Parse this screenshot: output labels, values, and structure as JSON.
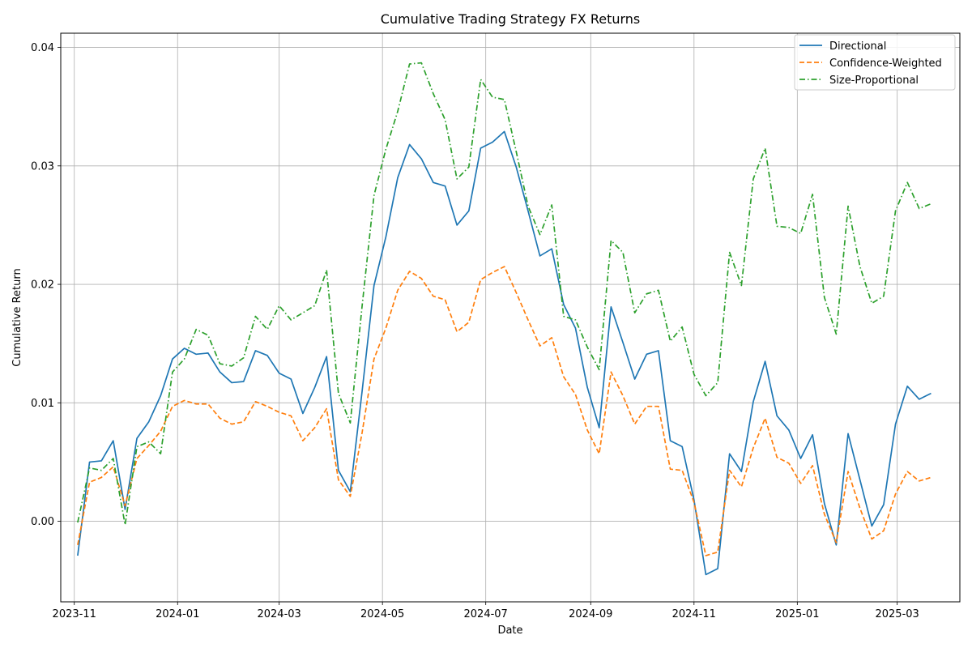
{
  "chart_data": {
    "type": "line",
    "title": "Cumulative Trading Strategy FX Returns",
    "xlabel": "Date",
    "ylabel": "Cumulative Return",
    "x_tick_labels": [
      "2023-11",
      "2024-01",
      "2024-03",
      "2024-05",
      "2024-07",
      "2024-09",
      "2024-11",
      "2025-01",
      "2025-03"
    ],
    "y_tick_labels": [
      "0.00",
      "0.01",
      "0.02",
      "0.03",
      "0.04"
    ],
    "ylim": [
      -0.0068,
      0.0412
    ],
    "xlim": [
      "2023-10-24",
      "2025-04-07"
    ],
    "grid": true,
    "legend_position": "top-right",
    "x": [
      "2023-11-03",
      "2023-11-10",
      "2023-11-17",
      "2023-11-24",
      "2023-12-01",
      "2023-12-08",
      "2023-12-15",
      "2023-12-22",
      "2023-12-29",
      "2024-01-05",
      "2024-01-12",
      "2024-01-19",
      "2024-01-26",
      "2024-02-02",
      "2024-02-09",
      "2024-02-16",
      "2024-02-23",
      "2024-03-01",
      "2024-03-08",
      "2024-03-15",
      "2024-03-22",
      "2024-03-29",
      "2024-04-05",
      "2024-04-12",
      "2024-04-19",
      "2024-04-26",
      "2024-05-03",
      "2024-05-10",
      "2024-05-17",
      "2024-05-24",
      "2024-05-31",
      "2024-06-07",
      "2024-06-14",
      "2024-06-21",
      "2024-06-28",
      "2024-07-05",
      "2024-07-12",
      "2024-07-19",
      "2024-07-26",
      "2024-08-02",
      "2024-08-09",
      "2024-08-16",
      "2024-08-23",
      "2024-08-30",
      "2024-09-06",
      "2024-09-13",
      "2024-09-20",
      "2024-09-27",
      "2024-10-04",
      "2024-10-11",
      "2024-10-18",
      "2024-10-25",
      "2024-11-01",
      "2024-11-08",
      "2024-11-15",
      "2024-11-22",
      "2024-11-29",
      "2024-12-06",
      "2024-12-13",
      "2024-12-20",
      "2024-12-27",
      "2025-01-03",
      "2025-01-10",
      "2025-01-17",
      "2025-01-24",
      "2025-01-31",
      "2025-02-07",
      "2025-02-14",
      "2025-02-21",
      "2025-02-28",
      "2025-03-07",
      "2025-03-14",
      "2025-03-21"
    ],
    "series": [
      {
        "name": "Directional",
        "color": "#1f77b4",
        "dash": "solid",
        "values": [
          -0.0029,
          0.005,
          0.0051,
          0.0068,
          0.001,
          0.007,
          0.0084,
          0.0106,
          0.0137,
          0.0146,
          0.0141,
          0.0142,
          0.0126,
          0.0117,
          0.0118,
          0.0144,
          0.014,
          0.0125,
          0.012,
          0.0091,
          0.0113,
          0.0139,
          0.0043,
          0.0025,
          0.011,
          0.0199,
          0.024,
          0.029,
          0.0318,
          0.0306,
          0.0286,
          0.0283,
          0.025,
          0.0262,
          0.0315,
          0.032,
          0.0329,
          0.0299,
          0.0262,
          0.0224,
          0.023,
          0.0183,
          0.0163,
          0.0113,
          0.0079,
          0.0181,
          0.0151,
          0.012,
          0.0141,
          0.0144,
          0.0068,
          0.0063,
          0.0018,
          -0.0045,
          -0.004,
          0.0057,
          0.0042,
          0.0101,
          0.0135,
          0.0089,
          0.0077,
          0.0053,
          0.0073,
          0.0015,
          -0.002,
          0.0074,
          0.0035,
          -0.0004,
          0.0014,
          0.0082,
          0.0114,
          0.0103,
          0.0108
        ]
      },
      {
        "name": "Confidence-Weighted",
        "color": "#ff7f0e",
        "dash": "dashed",
        "values": [
          -0.002,
          0.0033,
          0.0037,
          0.0046,
          0.0013,
          0.0053,
          0.0064,
          0.0076,
          0.0097,
          0.0102,
          0.0099,
          0.0099,
          0.0087,
          0.0082,
          0.0084,
          0.0101,
          0.0097,
          0.0092,
          0.0089,
          0.0068,
          0.0079,
          0.0095,
          0.0035,
          0.0021,
          0.0075,
          0.0137,
          0.0163,
          0.0195,
          0.0211,
          0.0205,
          0.019,
          0.0187,
          0.016,
          0.0168,
          0.0204,
          0.021,
          0.0215,
          0.0193,
          0.017,
          0.0148,
          0.0155,
          0.0122,
          0.0107,
          0.0077,
          0.0057,
          0.0126,
          0.0106,
          0.0082,
          0.0097,
          0.0097,
          0.0044,
          0.0043,
          0.0016,
          -0.0029,
          -0.0026,
          0.0043,
          0.0029,
          0.0062,
          0.0087,
          0.0054,
          0.0049,
          0.0032,
          0.0047,
          0.0006,
          -0.0018,
          0.0042,
          0.0011,
          -0.0015,
          -0.0008,
          0.0023,
          0.0042,
          0.0034,
          0.0037
        ]
      },
      {
        "name": "Size-Proportional",
        "color": "#2ca02c",
        "dash": "dashdot",
        "values": [
          -0.0001,
          0.0045,
          0.0043,
          0.0053,
          -0.0003,
          0.0063,
          0.0067,
          0.0057,
          0.0126,
          0.0137,
          0.0162,
          0.0157,
          0.0133,
          0.0131,
          0.0138,
          0.0173,
          0.0162,
          0.0182,
          0.017,
          0.0176,
          0.0182,
          0.0212,
          0.0108,
          0.0083,
          0.0182,
          0.0275,
          0.0314,
          0.0346,
          0.0386,
          0.0387,
          0.0361,
          0.0339,
          0.0289,
          0.0299,
          0.0373,
          0.0358,
          0.0356,
          0.0312,
          0.0266,
          0.0242,
          0.0267,
          0.0173,
          0.017,
          0.0147,
          0.0128,
          0.0237,
          0.0227,
          0.0176,
          0.0192,
          0.0195,
          0.0152,
          0.0164,
          0.0124,
          0.0106,
          0.0117,
          0.0227,
          0.0199,
          0.0289,
          0.0315,
          0.0249,
          0.0248,
          0.0243,
          0.0276,
          0.0189,
          0.0158,
          0.0266,
          0.0215,
          0.0184,
          0.019,
          0.0262,
          0.0286,
          0.0264,
          0.0268
        ]
      }
    ]
  }
}
